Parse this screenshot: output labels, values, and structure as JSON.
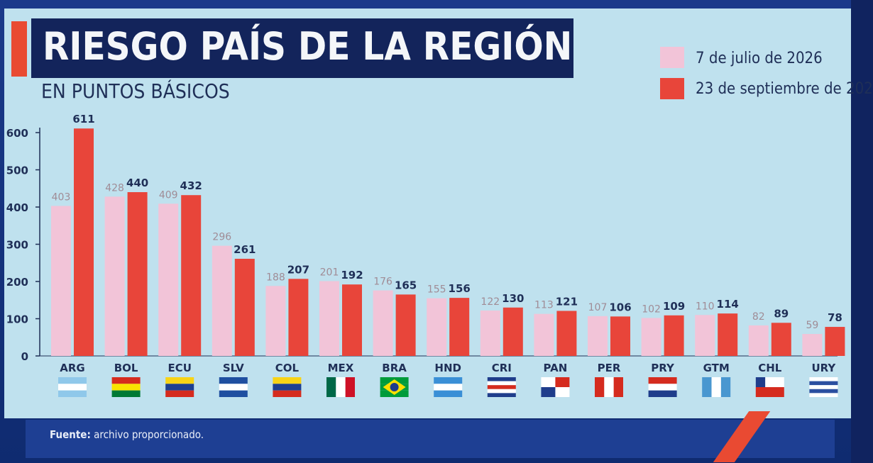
{
  "chart_data": {
    "type": "bar",
    "title": "RIESGO PAÍS DE LA REGIÓN",
    "subtitle": "EN PUNTOS BÁSICOS",
    "categories": [
      "ARG",
      "BOL",
      "ECU",
      "SLV",
      "COL",
      "MEX",
      "BRA",
      "HND",
      "CRI",
      "PAN",
      "PER",
      "PRY",
      "GTM",
      "CHL",
      "URY"
    ],
    "series": [
      {
        "name": "7 de julio de 2026",
        "color": "#f2c4d8",
        "values": [
          403,
          428,
          409,
          296,
          188,
          201,
          176,
          155,
          122,
          113,
          107,
          102,
          110,
          82,
          59
        ],
        "labels": [
          "403",
          "428",
          "409",
          "296",
          "188",
          "201",
          "176",
          "155",
          "122",
          "113",
          "107",
          "102",
          "110",
          "82",
          "59"
        ]
      },
      {
        "name": "23 de septiembre de 202",
        "color": "#e8453a",
        "values": [
          611,
          440,
          432,
          261,
          207,
          192,
          165,
          156,
          130,
          121,
          106,
          109,
          114,
          89,
          78
        ],
        "labels": [
          "611",
          "440",
          "432",
          "261",
          "207",
          "192",
          "165",
          "156",
          "130",
          "121",
          "106",
          "109",
          "114",
          "89",
          "78"
        ]
      }
    ],
    "yticks": [
      "0",
      "100",
      "200",
      "300",
      "400",
      "500",
      "600"
    ],
    "ylim": [
      0,
      600
    ],
    "legend": "top-right",
    "grid": false
  },
  "footer": {
    "source_label": "Fuente:",
    "source_text": " archivo proporcionado."
  },
  "flags": [
    "argentina-flag-icon",
    "bolivia-flag-icon",
    "ecuador-flag-icon",
    "el-salvador-flag-icon",
    "colombia-flag-icon",
    "mexico-flag-icon",
    "brazil-flag-icon",
    "honduras-flag-icon",
    "costa-rica-flag-icon",
    "panama-flag-icon",
    "peru-flag-icon",
    "paraguay-flag-icon",
    "guatemala-flag-icon",
    "chile-flag-icon",
    "uruguay-flag-icon"
  ]
}
